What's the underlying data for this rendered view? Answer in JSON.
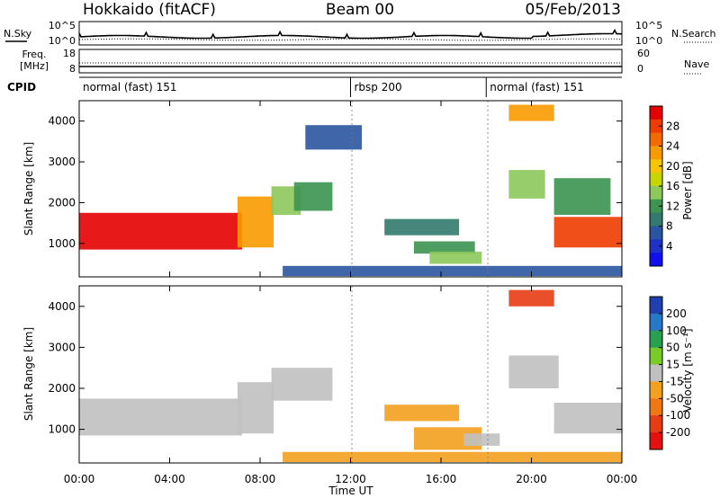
{
  "header": {
    "station": "Hokkaido (fitACF)",
    "beam": "Beam 00",
    "date": "05/Feb/2013"
  },
  "top_panels": {
    "nsky_label": "N.Sky",
    "nsearch_label": "N.Search",
    "freq_label_line1": "Freq.",
    "freq_label_line2": "[MHz]",
    "nave_label": "Nave",
    "cpid_label": "CPID",
    "noise_left_ticks": [
      "10^5",
      "10^0"
    ],
    "noise_right_ticks": [
      "10^5",
      "10^0"
    ],
    "freq_ticks": [
      "18",
      "8"
    ],
    "nave_ticks": [
      "60",
      "0"
    ]
  },
  "cpid_segments": [
    {
      "label": "normal (fast) 151",
      "start_hour": 0
    },
    {
      "label": "rbsp 200",
      "start_hour": 12
    },
    {
      "label": "normal (fast) 151",
      "start_hour": 18
    }
  ],
  "colorbars": {
    "power": {
      "title": "Power [dB]",
      "tick_labels": [
        "28",
        "24",
        "20",
        "16",
        "12",
        "8",
        "4"
      ],
      "colors": [
        "#e50000",
        "#f03c00",
        "#f36b00",
        "#f89a00",
        "#f8c400",
        "#c4d800",
        "#8cc85a",
        "#3c9450",
        "#327a6e",
        "#2a55a0",
        "#1f32c8",
        "#0f0ff0"
      ]
    },
    "velocity": {
      "title": "Velocity [m s⁻¹]",
      "tick_labels": [
        "200",
        "100",
        "50",
        "15",
        "-15",
        "-50",
        "-100",
        "-200"
      ],
      "colors": [
        "#2040b0",
        "#2878c8",
        "#28a050",
        "#78cc28",
        "#c0c0c0",
        "#f3a01e",
        "#f07814",
        "#e83c14",
        "#e51010"
      ]
    }
  },
  "chart_data": [
    {
      "type": "heatmap",
      "name": "power",
      "ylabel": "Slant Range [km]",
      "x_range_hours": [
        0,
        24
      ],
      "x_tick_labels": [
        "00:00",
        "04:00",
        "08:00",
        "12:00",
        "16:00",
        "20:00",
        "00:00"
      ],
      "ylim": [
        180,
        4500
      ],
      "y_ticks": [
        1000,
        2000,
        3000,
        4000
      ],
      "zlim": [
        0,
        30
      ],
      "features": [
        {
          "t0": 0.0,
          "t1": 7.2,
          "r0": 850,
          "r1": 1750,
          "value": 28
        },
        {
          "t0": 7.0,
          "t1": 8.6,
          "r0": 900,
          "r1": 2150,
          "value": 22
        },
        {
          "t0": 8.5,
          "t1": 9.8,
          "r0": 1700,
          "r1": 2400,
          "value": 14
        },
        {
          "t0": 9.5,
          "t1": 11.2,
          "r0": 1800,
          "r1": 2500,
          "value": 10
        },
        {
          "t0": 10.0,
          "t1": 12.5,
          "r0": 3300,
          "r1": 3900,
          "value": 6
        },
        {
          "t0": 13.5,
          "t1": 16.8,
          "r0": 1200,
          "r1": 1600,
          "value": 9
        },
        {
          "t0": 14.8,
          "t1": 17.5,
          "r0": 750,
          "r1": 1050,
          "value": 12
        },
        {
          "t0": 15.5,
          "t1": 17.8,
          "r0": 500,
          "r1": 800,
          "value": 14
        },
        {
          "t0": 19.0,
          "t1": 20.6,
          "r0": 2100,
          "r1": 2800,
          "value": 14
        },
        {
          "t0": 21.0,
          "t1": 24.0,
          "r0": 900,
          "r1": 1650,
          "value": 26
        },
        {
          "t0": 21.0,
          "t1": 23.5,
          "r0": 1700,
          "r1": 2600,
          "value": 10
        },
        {
          "t0": 19.0,
          "t1": 21.0,
          "r0": 4000,
          "r1": 4400,
          "value": 20
        },
        {
          "t0": 9.0,
          "t1": 24.0,
          "r0": 200,
          "r1": 450,
          "value": 6
        }
      ]
    },
    {
      "type": "heatmap",
      "name": "velocity",
      "ylabel": "Slant Range [km]",
      "xlabel": "Time UT",
      "x_range_hours": [
        0,
        24
      ],
      "x_tick_labels": [
        "00:00",
        "04:00",
        "08:00",
        "12:00",
        "16:00",
        "20:00",
        "00:00"
      ],
      "ylim": [
        180,
        4500
      ],
      "y_ticks": [
        1000,
        2000,
        3000,
        4000
      ],
      "zlim": [
        -250,
        250
      ],
      "features": [
        {
          "t0": 0.0,
          "t1": 7.2,
          "r0": 850,
          "r1": 1750,
          "value": 0
        },
        {
          "t0": 7.0,
          "t1": 8.6,
          "r0": 900,
          "r1": 2150,
          "value": 0
        },
        {
          "t0": 8.5,
          "t1": 11.2,
          "r0": 1700,
          "r1": 2500,
          "value": -20
        },
        {
          "t0": 13.5,
          "t1": 16.8,
          "r0": 1200,
          "r1": 1600,
          "value": -60
        },
        {
          "t0": 14.8,
          "t1": 17.8,
          "r0": 500,
          "r1": 1050,
          "value": -80
        },
        {
          "t0": 17.0,
          "t1": 18.6,
          "r0": 600,
          "r1": 900,
          "value": 0
        },
        {
          "t0": 19.0,
          "t1": 21.2,
          "r0": 2000,
          "r1": 2800,
          "value": 0
        },
        {
          "t0": 21.0,
          "t1": 24.0,
          "r0": 900,
          "r1": 1650,
          "value": 0
        },
        {
          "t0": 19.0,
          "t1": 21.0,
          "r0": 4000,
          "r1": 4400,
          "value": -180
        },
        {
          "t0": 9.0,
          "t1": 24.0,
          "r0": 200,
          "r1": 450,
          "value": -40
        }
      ]
    }
  ]
}
